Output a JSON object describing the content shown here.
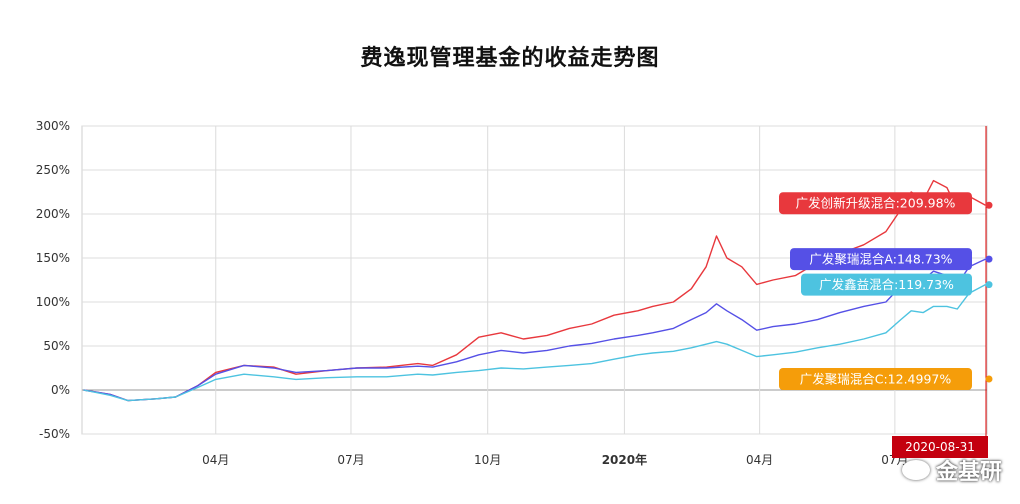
{
  "title": "费逸现管理基金的收益走势图",
  "watermark": "金基研",
  "chart_data": {
    "type": "line",
    "title": "费逸现管理基金的收益走势图",
    "xlabel": "",
    "ylabel": "",
    "ylim": [
      -50,
      300
    ],
    "yticks": [
      "300%",
      "250%",
      "200%",
      "150%",
      "100%",
      "50%",
      "0%",
      "-50%"
    ],
    "x_start": "2019-01-01",
    "x_end": "2020-09-01",
    "xticks": [
      {
        "date": "2019-04-01",
        "label": "04月",
        "bold": false
      },
      {
        "date": "2019-07-01",
        "label": "07月",
        "bold": false
      },
      {
        "date": "2019-10-01",
        "label": "10月",
        "bold": false
      },
      {
        "date": "2020-01-01",
        "label": "2020年",
        "bold": true
      },
      {
        "date": "2020-04-01",
        "label": "04月",
        "bold": false
      },
      {
        "date": "2020-07-01",
        "label": "07月",
        "bold": false
      }
    ],
    "grid": true,
    "end_marker_label": "2020-08-31",
    "series": [
      {
        "name": "广发创新升级混合",
        "label": "广发创新升级混合:209.98%",
        "color": "#e8383d",
        "final": 209.98,
        "points": [
          [
            "2019-01-02",
            0
          ],
          [
            "2019-01-20",
            -5
          ],
          [
            "2019-02-01",
            -12
          ],
          [
            "2019-02-20",
            -10
          ],
          [
            "2019-03-05",
            -8
          ],
          [
            "2019-03-20",
            5
          ],
          [
            "2019-04-01",
            20
          ],
          [
            "2019-04-20",
            28
          ],
          [
            "2019-05-10",
            26
          ],
          [
            "2019-05-25",
            18
          ],
          [
            "2019-06-15",
            22
          ],
          [
            "2019-07-05",
            25
          ],
          [
            "2019-07-25",
            26
          ],
          [
            "2019-08-15",
            30
          ],
          [
            "2019-08-25",
            28
          ],
          [
            "2019-09-10",
            40
          ],
          [
            "2019-09-25",
            60
          ],
          [
            "2019-10-10",
            65
          ],
          [
            "2019-10-25",
            58
          ],
          [
            "2019-11-10",
            62
          ],
          [
            "2019-11-25",
            70
          ],
          [
            "2019-12-10",
            75
          ],
          [
            "2019-12-25",
            85
          ],
          [
            "2020-01-10",
            90
          ],
          [
            "2020-01-20",
            95
          ],
          [
            "2020-02-03",
            100
          ],
          [
            "2020-02-15",
            115
          ],
          [
            "2020-02-25",
            140
          ],
          [
            "2020-03-03",
            175
          ],
          [
            "2020-03-10",
            150
          ],
          [
            "2020-03-20",
            140
          ],
          [
            "2020-03-30",
            120
          ],
          [
            "2020-04-10",
            125
          ],
          [
            "2020-04-25",
            130
          ],
          [
            "2020-05-10",
            145
          ],
          [
            "2020-05-25",
            155
          ],
          [
            "2020-06-10",
            165
          ],
          [
            "2020-06-25",
            180
          ],
          [
            "2020-07-05",
            205
          ],
          [
            "2020-07-12",
            225
          ],
          [
            "2020-07-20",
            215
          ],
          [
            "2020-07-27",
            238
          ],
          [
            "2020-08-05",
            230
          ],
          [
            "2020-08-12",
            205
          ],
          [
            "2020-08-20",
            220
          ],
          [
            "2020-08-31",
            209.98
          ]
        ]
      },
      {
        "name": "广发聚瑞混合A",
        "label": "广发聚瑞混合A:148.73%",
        "color": "#5550e6",
        "final": 148.73,
        "points": [
          [
            "2019-01-02",
            0
          ],
          [
            "2019-01-20",
            -5
          ],
          [
            "2019-02-01",
            -12
          ],
          [
            "2019-02-20",
            -10
          ],
          [
            "2019-03-05",
            -8
          ],
          [
            "2019-03-20",
            5
          ],
          [
            "2019-04-01",
            18
          ],
          [
            "2019-04-20",
            28
          ],
          [
            "2019-05-10",
            25
          ],
          [
            "2019-05-25",
            20
          ],
          [
            "2019-06-15",
            22
          ],
          [
            "2019-07-05",
            25
          ],
          [
            "2019-07-25",
            25
          ],
          [
            "2019-08-15",
            27
          ],
          [
            "2019-08-25",
            26
          ],
          [
            "2019-09-10",
            32
          ],
          [
            "2019-09-25",
            40
          ],
          [
            "2019-10-10",
            45
          ],
          [
            "2019-10-25",
            42
          ],
          [
            "2019-11-10",
            45
          ],
          [
            "2019-11-25",
            50
          ],
          [
            "2019-12-10",
            53
          ],
          [
            "2019-12-25",
            58
          ],
          [
            "2020-01-10",
            62
          ],
          [
            "2020-01-20",
            65
          ],
          [
            "2020-02-03",
            70
          ],
          [
            "2020-02-15",
            80
          ],
          [
            "2020-02-25",
            88
          ],
          [
            "2020-03-03",
            98
          ],
          [
            "2020-03-10",
            90
          ],
          [
            "2020-03-20",
            80
          ],
          [
            "2020-03-30",
            68
          ],
          [
            "2020-04-10",
            72
          ],
          [
            "2020-04-25",
            75
          ],
          [
            "2020-05-10",
            80
          ],
          [
            "2020-05-25",
            88
          ],
          [
            "2020-06-10",
            95
          ],
          [
            "2020-06-25",
            100
          ],
          [
            "2020-07-05",
            118
          ],
          [
            "2020-07-12",
            130
          ],
          [
            "2020-07-20",
            125
          ],
          [
            "2020-07-27",
            135
          ],
          [
            "2020-08-05",
            130
          ],
          [
            "2020-08-12",
            120
          ],
          [
            "2020-08-20",
            140
          ],
          [
            "2020-08-31",
            148.73
          ]
        ]
      },
      {
        "name": "广发鑫益混合",
        "label": "广发鑫益混合:119.73%",
        "color": "#4dc3e0",
        "final": 119.73,
        "points": [
          [
            "2019-01-02",
            0
          ],
          [
            "2019-01-20",
            -6
          ],
          [
            "2019-02-01",
            -12
          ],
          [
            "2019-02-20",
            -10
          ],
          [
            "2019-03-05",
            -8
          ],
          [
            "2019-03-20",
            3
          ],
          [
            "2019-04-01",
            12
          ],
          [
            "2019-04-20",
            18
          ],
          [
            "2019-05-10",
            15
          ],
          [
            "2019-05-25",
            12
          ],
          [
            "2019-06-15",
            14
          ],
          [
            "2019-07-05",
            15
          ],
          [
            "2019-07-25",
            15
          ],
          [
            "2019-08-15",
            18
          ],
          [
            "2019-08-25",
            17
          ],
          [
            "2019-09-10",
            20
          ],
          [
            "2019-09-25",
            22
          ],
          [
            "2019-10-10",
            25
          ],
          [
            "2019-10-25",
            24
          ],
          [
            "2019-11-10",
            26
          ],
          [
            "2019-11-25",
            28
          ],
          [
            "2019-12-10",
            30
          ],
          [
            "2019-12-25",
            35
          ],
          [
            "2020-01-10",
            40
          ],
          [
            "2020-01-20",
            42
          ],
          [
            "2020-02-03",
            44
          ],
          [
            "2020-02-15",
            48
          ],
          [
            "2020-02-25",
            52
          ],
          [
            "2020-03-03",
            55
          ],
          [
            "2020-03-10",
            52
          ],
          [
            "2020-03-20",
            45
          ],
          [
            "2020-03-30",
            38
          ],
          [
            "2020-04-10",
            40
          ],
          [
            "2020-04-25",
            43
          ],
          [
            "2020-05-10",
            48
          ],
          [
            "2020-05-25",
            52
          ],
          [
            "2020-06-10",
            58
          ],
          [
            "2020-06-25",
            65
          ],
          [
            "2020-07-05",
            80
          ],
          [
            "2020-07-12",
            90
          ],
          [
            "2020-07-20",
            88
          ],
          [
            "2020-07-27",
            95
          ],
          [
            "2020-08-05",
            95
          ],
          [
            "2020-08-12",
            92
          ],
          [
            "2020-08-20",
            110
          ],
          [
            "2020-08-31",
            119.73
          ]
        ]
      },
      {
        "name": "广发聚瑞混合C",
        "label": "广发聚瑞混合C:12.4997%",
        "color": "#f59d0a",
        "final": 12.4997,
        "points": [
          [
            "2020-08-31",
            12.4997
          ]
        ]
      }
    ]
  }
}
